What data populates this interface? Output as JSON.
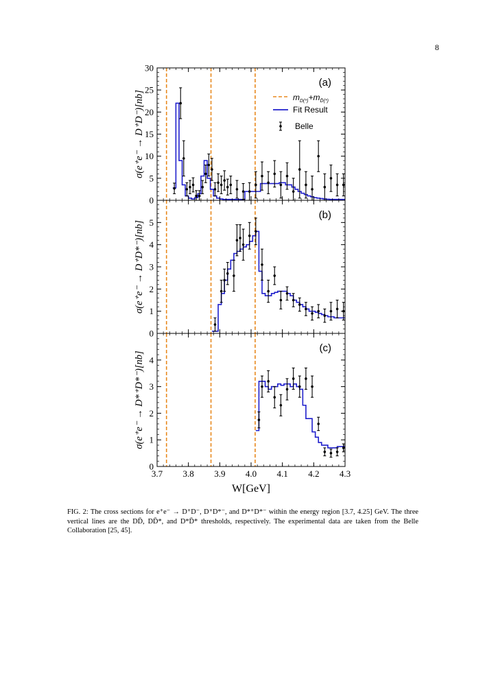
{
  "page": {
    "number": "8"
  },
  "figure": {
    "xlabel": "W[GeV]",
    "x_tick_labels": [
      "3.7",
      "3.8",
      "3.9",
      "4.0",
      "4.1",
      "4.2",
      "4.3"
    ],
    "legend": {
      "threshold": "m",
      "threshold_sub1": "D(*)",
      "threshold_plus": "+m",
      "threshold_sub2": "D̄(*)",
      "fit": "Fit Result",
      "data": "Belle"
    },
    "colors": {
      "threshold": "#E8891E",
      "fit": "#1F1FCC",
      "data": "#000000"
    }
  },
  "caption": {
    "text": "FIG. 2: The cross sections for e⁺e⁻ → D⁺D⁻, D⁺D*⁻, and D*⁺D*⁻ within the energy region [3.7, 4.25] GeV. The three vertical lines are the DD̄, DD̄*, and D*D̄* thresholds, respectively. The experimental data are taken from the Belle Collaboration [25, 45]."
  },
  "chart_data": [
    {
      "type": "scatter",
      "panel_label": "(a)",
      "ylabel": "σ(e⁺e⁻ → D⁺D⁻)[nb]",
      "xlim": [
        3.7,
        4.3
      ],
      "ylim": [
        0,
        30
      ],
      "y_tick_labels": [
        "0",
        "5",
        "10",
        "15",
        "20",
        "25",
        "30"
      ],
      "thresholds": [
        3.73,
        3.872,
        4.013
      ],
      "fit_steps": {
        "edges": [
          3.75,
          3.76,
          3.77,
          3.78,
          3.79,
          3.8,
          3.81,
          3.82,
          3.83,
          3.84,
          3.85,
          3.86,
          3.87,
          3.88,
          3.89,
          3.9,
          3.91,
          3.92,
          3.93,
          3.94,
          3.95,
          3.96,
          3.97,
          3.98,
          3.99,
          4.0,
          4.01,
          4.02,
          4.03,
          4.04,
          4.05,
          4.06,
          4.07,
          4.08,
          4.09,
          4.1,
          4.11,
          4.12,
          4.13,
          4.14,
          4.15,
          4.16,
          4.17,
          4.18,
          4.19,
          4.2,
          4.21,
          4.22,
          4.23,
          4.24,
          4.25,
          4.26,
          4.27,
          4.28,
          4.29,
          4.3
        ],
        "values": [
          2.8,
          22,
          9,
          3.5,
          1,
          0.5,
          0.3,
          0.6,
          1.5,
          5.5,
          9,
          5,
          2.5,
          1,
          0.5,
          0.3,
          0.2,
          0.2,
          0.2,
          0.2,
          0.2,
          0.2,
          0.2,
          2.0,
          2.0,
          2.0,
          2.0,
          2.0,
          3.8,
          3.8,
          3.8,
          3.8,
          3.8,
          3.8,
          4.0,
          4.0,
          3.5,
          3.5,
          3.0,
          2.5,
          2.0,
          1.6,
          1.3,
          1.0,
          0.8,
          0.6,
          0.5,
          0.4,
          0.3,
          0.25,
          0.2,
          0.2,
          0.2,
          0.2,
          0.2
        ]
      },
      "points": {
        "x": [
          3.755,
          3.775,
          3.785,
          3.795,
          3.805,
          3.815,
          3.825,
          3.835,
          3.845,
          3.855,
          3.865,
          3.875,
          3.885,
          3.895,
          3.905,
          3.915,
          3.925,
          3.935,
          3.955,
          3.975,
          3.995,
          4.015,
          4.035,
          4.055,
          4.075,
          4.095,
          4.115,
          4.135,
          4.155,
          4.175,
          4.195,
          4.215,
          4.235,
          4.255,
          4.275,
          4.295
        ],
        "y": [
          2.7,
          22.0,
          9.5,
          2.5,
          3.0,
          3.5,
          1.0,
          1.0,
          3.0,
          6.0,
          8.0,
          7.0,
          2.5,
          4.0,
          3.5,
          4.5,
          3.0,
          3.5,
          2.5,
          2.0,
          2.0,
          3.5,
          5.5,
          4.0,
          6.0,
          3.5,
          5.5,
          2.0,
          7.0,
          3.5,
          2.5,
          10.0,
          3.0,
          5.0,
          3.5,
          3.5
        ],
        "err": [
          1.2,
          3.5,
          4.0,
          1.5,
          1.5,
          1.6,
          1.2,
          1.2,
          1.5,
          2.0,
          2.5,
          2.5,
          1.5,
          2.0,
          2.0,
          2.2,
          1.8,
          2.0,
          2.0,
          1.8,
          2.0,
          3.0,
          3.2,
          2.5,
          3.0,
          3.0,
          3.0,
          3.0,
          6.5,
          3.0,
          3.0,
          3.5,
          3.0,
          3.0,
          2.5,
          2.5
        ]
      }
    },
    {
      "type": "scatter",
      "panel_label": "(b)",
      "ylabel": "σ(e⁺e⁻ → D⁺D*⁻)[nb]",
      "xlim": [
        3.7,
        4.3
      ],
      "ylim": [
        0,
        6
      ],
      "y_tick_labels": [
        "0",
        "1",
        "2",
        "3",
        "4",
        "5"
      ],
      "thresholds": [
        3.73,
        3.872,
        4.013
      ],
      "fit_steps": {
        "edges": [
          3.875,
          3.885,
          3.895,
          3.905,
          3.915,
          3.925,
          3.935,
          3.945,
          3.955,
          3.965,
          3.975,
          3.985,
          3.995,
          4.005,
          4.015,
          4.025,
          4.035,
          4.045,
          4.055,
          4.065,
          4.075,
          4.085,
          4.095,
          4.105,
          4.115,
          4.125,
          4.135,
          4.145,
          4.155,
          4.165,
          4.175,
          4.185,
          4.195,
          4.205,
          4.215,
          4.225,
          4.235,
          4.245,
          4.255,
          4.265,
          4.275,
          4.285,
          4.3
        ],
        "values": [
          0.1,
          0.1,
          1.3,
          1.8,
          2.4,
          2.9,
          3.3,
          3.6,
          3.7,
          3.8,
          3.9,
          4.0,
          4.15,
          4.4,
          4.6,
          2.8,
          1.8,
          1.7,
          1.7,
          1.8,
          1.85,
          1.9,
          1.9,
          1.9,
          1.8,
          1.7,
          1.5,
          1.4,
          1.3,
          1.2,
          1.1,
          1.0,
          1.0,
          0.95,
          0.9,
          0.85,
          0.8,
          0.75,
          0.75,
          0.7,
          0.7,
          0.7
        ]
      },
      "points": {
        "x": [
          3.885,
          3.905,
          3.915,
          3.925,
          3.945,
          3.955,
          3.965,
          3.975,
          3.995,
          4.015,
          4.035,
          4.055,
          4.075,
          4.095,
          4.115,
          4.135,
          4.155,
          4.175,
          4.195,
          4.215,
          4.235,
          4.255,
          4.275,
          4.295
        ],
        "y": [
          0.4,
          1.9,
          2.4,
          2.7,
          2.6,
          4.2,
          4.3,
          4.0,
          4.4,
          4.6,
          3.1,
          1.9,
          2.6,
          1.5,
          1.8,
          1.5,
          1.3,
          1.1,
          0.9,
          1.0,
          0.8,
          1.0,
          1.1,
          1.0
        ],
        "err": [
          0.3,
          0.5,
          0.5,
          0.5,
          0.7,
          0.7,
          0.6,
          0.7,
          0.6,
          0.6,
          0.7,
          0.5,
          0.4,
          0.4,
          0.3,
          0.3,
          0.3,
          0.3,
          0.3,
          0.3,
          0.3,
          0.4,
          0.4,
          0.4
        ]
      }
    },
    {
      "type": "scatter",
      "panel_label": "(c)",
      "ylabel": "σ(e⁺e⁻ → D*⁺D*⁻)[nb]",
      "xlim": [
        3.7,
        4.3
      ],
      "ylim": [
        0,
        5
      ],
      "y_tick_labels": [
        "0",
        "1",
        "2",
        "3",
        "4"
      ],
      "thresholds": [
        3.73,
        3.872,
        4.013
      ],
      "fit_steps": {
        "edges": [
          4.015,
          4.025,
          4.035,
          4.045,
          4.055,
          4.065,
          4.075,
          4.085,
          4.095,
          4.105,
          4.115,
          4.125,
          4.135,
          4.145,
          4.155,
          4.165,
          4.175,
          4.185,
          4.195,
          4.205,
          4.215,
          4.225,
          4.235,
          4.245,
          4.255,
          4.265,
          4.275,
          4.285,
          4.3
        ],
        "values": [
          1.35,
          3.2,
          3.2,
          3.0,
          2.9,
          3.0,
          3.0,
          3.1,
          3.05,
          3.1,
          3.1,
          3.0,
          3.1,
          3.0,
          2.9,
          2.3,
          1.8,
          1.8,
          1.3,
          1.1,
          0.9,
          0.8,
          0.8,
          0.7,
          0.7,
          0.7,
          0.75,
          0.75
        ]
      },
      "points": {
        "x": [
          4.025,
          4.035,
          4.055,
          4.075,
          4.095,
          4.115,
          4.135,
          4.155,
          4.175,
          4.195,
          4.215,
          4.235,
          4.255,
          4.275,
          4.295
        ],
        "y": [
          1.75,
          3.0,
          3.2,
          2.6,
          2.3,
          2.9,
          3.3,
          3.0,
          3.3,
          3.0,
          1.6,
          0.55,
          0.5,
          0.55,
          0.7
        ],
        "err": [
          0.3,
          0.4,
          0.4,
          0.4,
          0.4,
          0.4,
          0.4,
          0.4,
          0.4,
          0.4,
          0.25,
          0.15,
          0.15,
          0.15,
          0.15
        ]
      }
    }
  ]
}
